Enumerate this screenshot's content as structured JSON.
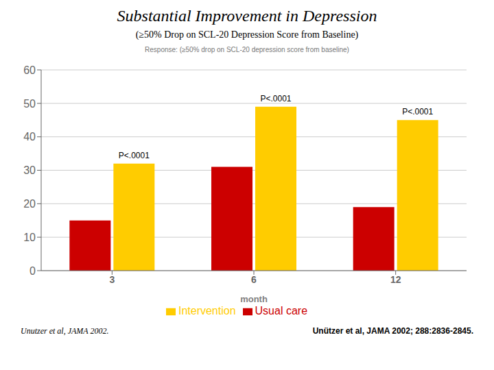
{
  "chart_data": {
    "type": "bar",
    "title": "Substantial Improvement in Depression",
    "subtitle": "(≥50% Drop on SCL-20 Depression Score from Baseline)",
    "caption": "Response: (≥50% drop on SCL-20 depression score from baseline)",
    "x_label": "month",
    "categories": [
      "3",
      "6",
      "12"
    ],
    "series": [
      {
        "name": "Usual care",
        "color": "#cc0000",
        "values": [
          15,
          31,
          19
        ]
      },
      {
        "name": "Intervention",
        "color": "#ffcc00",
        "values": [
          32,
          49,
          45
        ]
      }
    ],
    "annotations": [
      {
        "category": "3",
        "text": "P<.0001"
      },
      {
        "category": "6",
        "text": "P<.0001"
      },
      {
        "category": "12",
        "text": "P<.0001"
      }
    ],
    "footnotes": [
      "Unutzer et al, JAMA 2002.",
      "Unützer et al, JAMA 2002; 288:2836-2845."
    ],
    "ylim": [
      0,
      60
    ],
    "yticks": [
      0,
      10,
      20,
      30,
      40,
      50,
      60
    ],
    "grid": true,
    "legend": "bottom"
  }
}
